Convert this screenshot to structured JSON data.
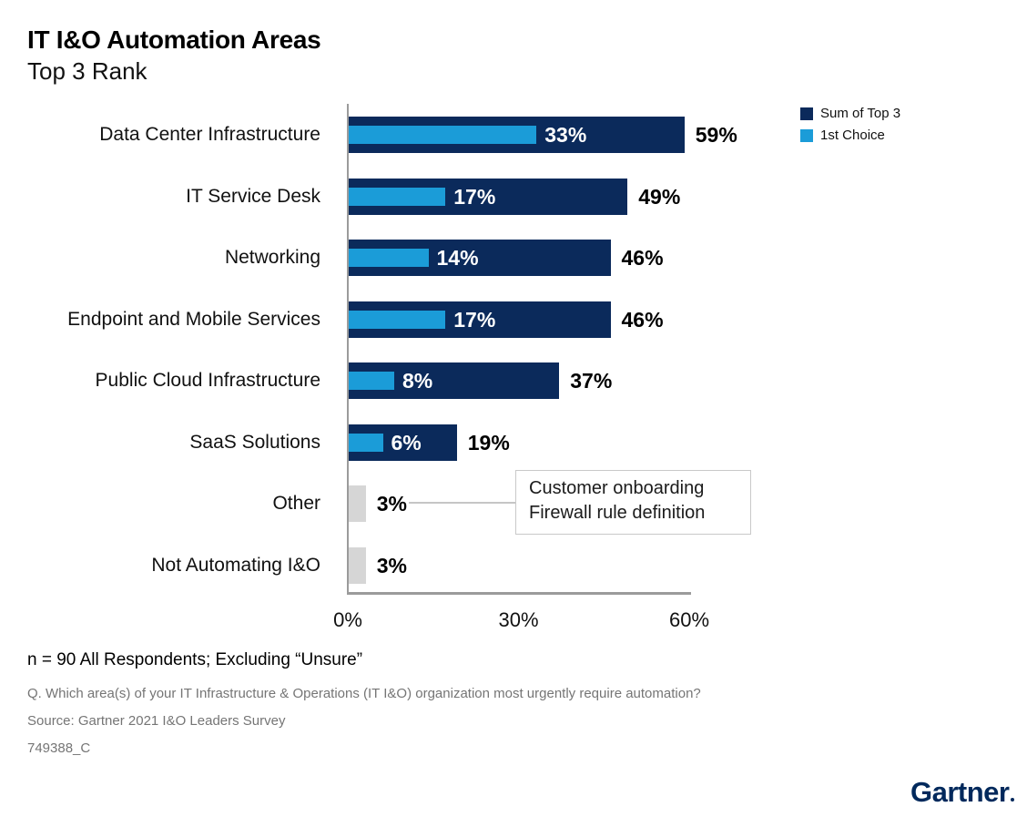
{
  "header": {
    "title": "IT I&O Automation Areas",
    "subtitle": "Top 3 Rank"
  },
  "legend": {
    "items": [
      {
        "label": "Sum of Top 3",
        "color": "#0b2a5b"
      },
      {
        "label": "1st Choice",
        "color": "#1b9cd8"
      }
    ]
  },
  "chart_data": {
    "type": "bar",
    "orientation": "horizontal",
    "title": "IT I&O Automation Areas",
    "subtitle": "Top 3 Rank",
    "xlabel": "",
    "ylabel": "",
    "xlim": [
      0,
      60
    ],
    "grid": false,
    "legend_position": "top-right",
    "xticks": [
      {
        "value": 0,
        "label": "0%"
      },
      {
        "value": 30,
        "label": "30%"
      },
      {
        "value": 60,
        "label": "60%"
      }
    ],
    "categories": [
      "Data Center Infrastructure",
      "IT Service Desk",
      "Networking",
      "Endpoint and Mobile Services",
      "Public Cloud Infrastructure",
      "SaaS Solutions",
      "Other",
      "Not Automating I&O"
    ],
    "series": [
      {
        "name": "Sum of Top 3",
        "color": "#0b2a5b",
        "values": [
          59,
          49,
          46,
          46,
          37,
          19,
          3,
          3
        ]
      },
      {
        "name": "1st Choice",
        "color": "#1b9cd8",
        "values": [
          33,
          17,
          14,
          17,
          8,
          6,
          null,
          null
        ]
      }
    ],
    "neutral_bar": {
      "categories": [
        "Other",
        "Not Automating I&O"
      ],
      "color": "#d6d6d6"
    },
    "value_label_format": "{value}%"
  },
  "annotation": {
    "lines": [
      "Customer onboarding",
      "Firewall rule definition"
    ],
    "attached_to": "Other"
  },
  "footer": {
    "n_note": "n = 90 All Respondents; Excluding “Unsure”",
    "question": "Q. Which area(s) of your IT Infrastructure & Operations (IT I&O) organization most urgently require automation?",
    "source": "Source: Gartner 2021 I&O Leaders Survey",
    "doc_id": "749388_C"
  },
  "logo": {
    "text": "Gartner"
  }
}
